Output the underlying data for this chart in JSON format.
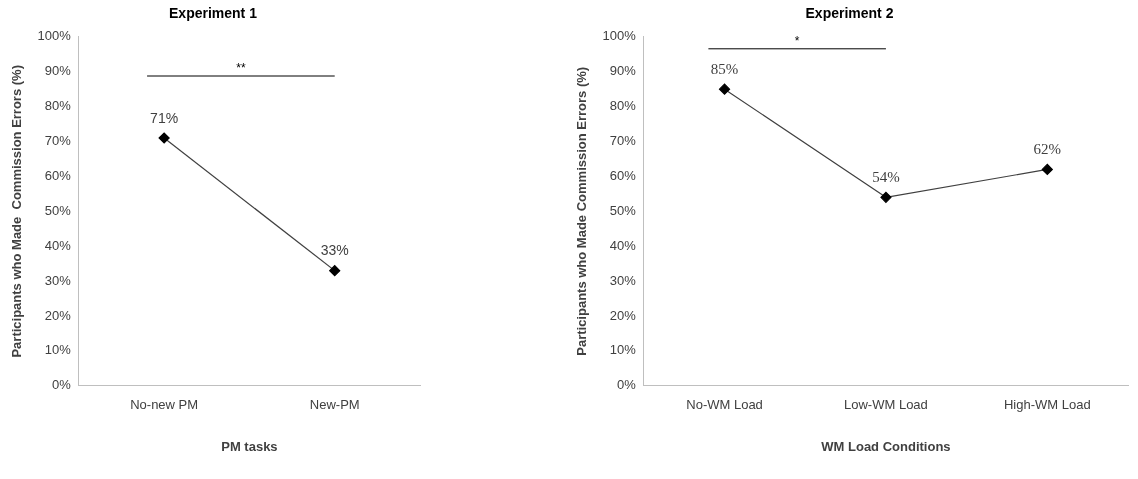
{
  "chart_data": [
    {
      "type": "line",
      "title": "Experiment 1",
      "xlabel": "PM tasks",
      "ylabel": "Participants who Made  Commission Errors (%)",
      "categories": [
        "No-new PM",
        "New-PM"
      ],
      "series": [
        {
          "color": "#000000",
          "values": [
            71,
            33
          ],
          "value_labels": [
            "71%",
            "33%"
          ]
        }
      ],
      "ylim": [
        0,
        100
      ],
      "yticks": [
        {
          "value": 0,
          "label": "0%"
        },
        {
          "value": 10,
          "label": "10%"
        },
        {
          "value": 20,
          "label": "20%"
        },
        {
          "value": 30,
          "label": "30%"
        },
        {
          "value": 40,
          "label": "40%"
        },
        {
          "value": 50,
          "label": "50%"
        },
        {
          "value": 60,
          "label": "60%"
        },
        {
          "value": 70,
          "label": "70%"
        },
        {
          "value": 80,
          "label": "80%"
        },
        {
          "value": 90,
          "label": "90%"
        },
        {
          "value": 100,
          "label": "100%"
        }
      ],
      "annotations": [
        "**"
      ],
      "marker": "diamond",
      "line_style": "solid",
      "grid": false,
      "legend": false
    },
    {
      "type": "line",
      "title": "Experiment 2",
      "xlabel": "WM Load Conditions",
      "ylabel": "Participants who Made Commission Errors (%)",
      "categories": [
        "No-WM Load",
        "Low-WM Load",
        "High-WM Load"
      ],
      "series": [
        {
          "color": "#000000",
          "values": [
            85,
            54,
            62
          ],
          "value_labels": [
            "85%",
            "54%",
            "62%"
          ]
        }
      ],
      "ylim": [
        0,
        100
      ],
      "yticks": [
        {
          "value": 0,
          "label": "0%"
        },
        {
          "value": 10,
          "label": "10%"
        },
        {
          "value": 20,
          "label": "20%"
        },
        {
          "value": 30,
          "label": "30%"
        },
        {
          "value": 40,
          "label": "40%"
        },
        {
          "value": 50,
          "label": "50%"
        },
        {
          "value": 60,
          "label": "60%"
        },
        {
          "value": 70,
          "label": "70%"
        },
        {
          "value": 80,
          "label": "80%"
        },
        {
          "value": 90,
          "label": "90%"
        },
        {
          "value": 100,
          "label": "100%"
        }
      ],
      "annotations": [
        "*"
      ],
      "marker": "diamond",
      "line_style": "solid",
      "grid": false,
      "legend": false
    }
  ]
}
